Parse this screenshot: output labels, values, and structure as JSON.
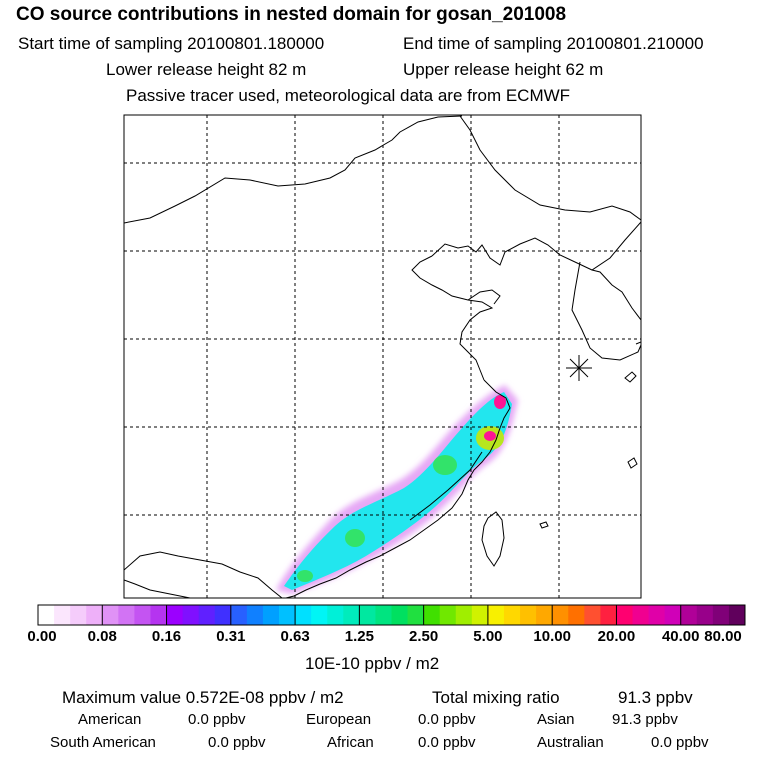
{
  "header": {
    "title": "CO  source contributions in nested domain for gosan_201008",
    "start_label": "Start time of sampling 20100801.180000",
    "end_label": "End time of sampling 20100801.210000",
    "lower_label": "Lower release height   82 m",
    "upper_label": "Upper release height   62 m",
    "tracer_note": "Passive tracer used, meteorological data are from ECMWF"
  },
  "colors": {
    "background": "#ffffff",
    "plume_outer": "#e6a8f5",
    "plume_mid": "#22e6ee",
    "plume_inner": "#32e36a",
    "plume_core": "#b8e61e",
    "hotspot": "#ff1493"
  },
  "colorbar": {
    "labels": [
      "0.00",
      "0.08",
      "0.16",
      "0.31",
      "0.63",
      "1.25",
      "2.50",
      "5.00",
      "10.00",
      "20.00",
      "40.00",
      "80.00"
    ],
    "colors": [
      "#ffffff",
      "#fbe6fd",
      "#f5ccfb",
      "#eeb0f9",
      "#e092f6",
      "#d273f4",
      "#c454f2",
      "#b534f0",
      "#9b00ff",
      "#8010ff",
      "#6020ff",
      "#4030ff",
      "#2860ff",
      "#1080ff",
      "#00a0ff",
      "#00c0ff",
      "#00e0ff",
      "#00f5f5",
      "#00f0d8",
      "#00ecbc",
      "#00e8a0",
      "#00e480",
      "#00e060",
      "#20e040",
      "#40e000",
      "#70e800",
      "#a0ee00",
      "#d0f200",
      "#f8f000",
      "#ffd800",
      "#ffc000",
      "#ffa800",
      "#ff9000",
      "#ff7000",
      "#ff5030",
      "#ff2040",
      "#ff0070",
      "#f00090",
      "#e000a8",
      "#d000b8",
      "#b00098",
      "#98008a",
      "#800078",
      "#60005c"
    ],
    "unit": "10E-10 ppbv / m2"
  },
  "summary": {
    "max_value": "Maximum value  0.572E-08 ppbv / m2",
    "total_label": "Total mixing ratio",
    "total_value": "91.3 ppbv"
  },
  "regions": [
    {
      "name": "American",
      "value": "0.0 ppbv"
    },
    {
      "name": "European",
      "value": "0.0 ppbv"
    },
    {
      "name": "Asian",
      "value": "91.3 ppbv"
    },
    {
      "name": "South American",
      "value": "0.0 ppbv"
    },
    {
      "name": "African",
      "value": "0.0 ppbv"
    },
    {
      "name": "Australian",
      "value": "0.0 ppbv"
    }
  ]
}
